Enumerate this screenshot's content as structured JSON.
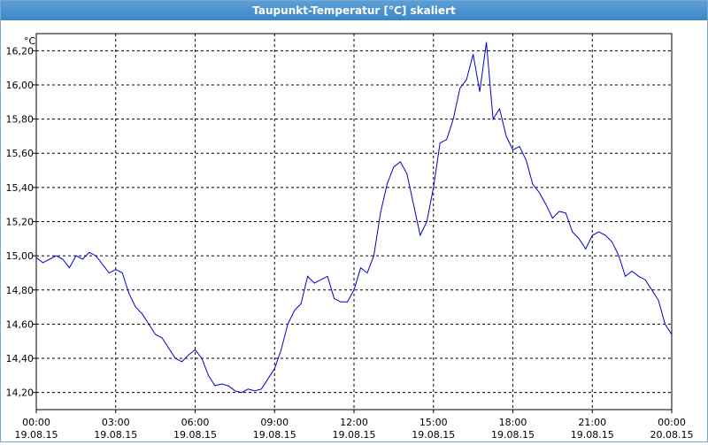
{
  "window": {
    "title": "Taupunkt-Temperatur [°C] skaliert"
  },
  "chart_data": {
    "type": "line",
    "title": "Taupunkt-Temperatur [°C] skaliert",
    "ylabel": "°C",
    "xlabel": "",
    "grid": true,
    "ylim": [
      14.1,
      16.3
    ],
    "xlim": [
      0,
      24
    ],
    "y_ticks": [
      "14,20",
      "14,40",
      "14,60",
      "14,80",
      "15,00",
      "15,20",
      "15,40",
      "15,60",
      "15,80",
      "16,00",
      "16,20"
    ],
    "x_ticks": [
      {
        "time": "00:00",
        "date": "19.08.15"
      },
      {
        "time": "03:00",
        "date": "19.08.15"
      },
      {
        "time": "06:00",
        "date": "19.08.15"
      },
      {
        "time": "09:00",
        "date": "19.08.15"
      },
      {
        "time": "12:00",
        "date": "19.08.15"
      },
      {
        "time": "15:00",
        "date": "19.08.15"
      },
      {
        "time": "18:00",
        "date": "19.08.15"
      },
      {
        "time": "21:00",
        "date": "19.08.15"
      },
      {
        "time": "00:00",
        "date": "20.08.15"
      }
    ],
    "series": [
      {
        "color": "#0000cc",
        "x": [
          0,
          0.25,
          0.5,
          0.75,
          1.0,
          1.25,
          1.5,
          1.75,
          2.0,
          2.25,
          2.5,
          2.75,
          3.0,
          3.25,
          3.5,
          3.75,
          4.0,
          4.25,
          4.5,
          4.75,
          5.0,
          5.25,
          5.5,
          5.75,
          6.0,
          6.25,
          6.5,
          6.75,
          7.0,
          7.25,
          7.5,
          7.75,
          8.0,
          8.25,
          8.5,
          8.75,
          9.0,
          9.25,
          9.5,
          9.75,
          10.0,
          10.25,
          10.5,
          10.75,
          11.0,
          11.25,
          11.5,
          11.75,
          12.0,
          12.25,
          12.5,
          12.75,
          13.0,
          13.25,
          13.5,
          13.75,
          14.0,
          14.25,
          14.5,
          14.75,
          15.0,
          15.25,
          15.5,
          15.75,
          16.0,
          16.25,
          16.5,
          16.75,
          17.0,
          17.25,
          17.5,
          17.75,
          18.0,
          18.25,
          18.5,
          18.75,
          19.0,
          19.25,
          19.5,
          19.75,
          20.0,
          20.25,
          20.5,
          20.75,
          21.0,
          21.25,
          21.5,
          21.75,
          22.0,
          22.25,
          22.5,
          22.75,
          23.0,
          23.25,
          23.5,
          23.75,
          24.0
        ],
        "y": [
          14.99,
          14.96,
          14.98,
          15.0,
          14.98,
          14.93,
          15.0,
          14.98,
          15.02,
          15.0,
          14.95,
          14.9,
          14.92,
          14.9,
          14.78,
          14.7,
          14.66,
          14.6,
          14.54,
          14.52,
          14.46,
          14.4,
          14.38,
          14.42,
          14.45,
          14.4,
          14.3,
          14.24,
          14.25,
          14.24,
          14.21,
          14.2,
          14.22,
          14.21,
          14.22,
          14.28,
          14.34,
          14.45,
          14.6,
          14.68,
          14.72,
          14.88,
          14.84,
          14.86,
          14.88,
          14.75,
          14.73,
          14.73,
          14.8,
          14.93,
          14.9,
          15.0,
          15.25,
          15.42,
          15.52,
          15.55,
          15.48,
          15.3,
          15.12,
          15.2,
          15.4,
          15.66,
          15.68,
          15.8,
          15.98,
          16.03,
          16.18,
          15.96,
          16.25,
          15.8,
          15.86,
          15.7,
          15.62,
          15.64,
          15.56,
          15.42,
          15.37,
          15.3,
          15.22,
          15.26,
          15.25,
          15.14,
          15.1,
          15.04,
          15.12,
          15.14,
          15.12,
          15.08,
          15.0,
          14.88,
          14.91,
          14.88,
          14.86,
          14.8,
          14.74,
          14.6,
          14.54
        ]
      }
    ]
  }
}
